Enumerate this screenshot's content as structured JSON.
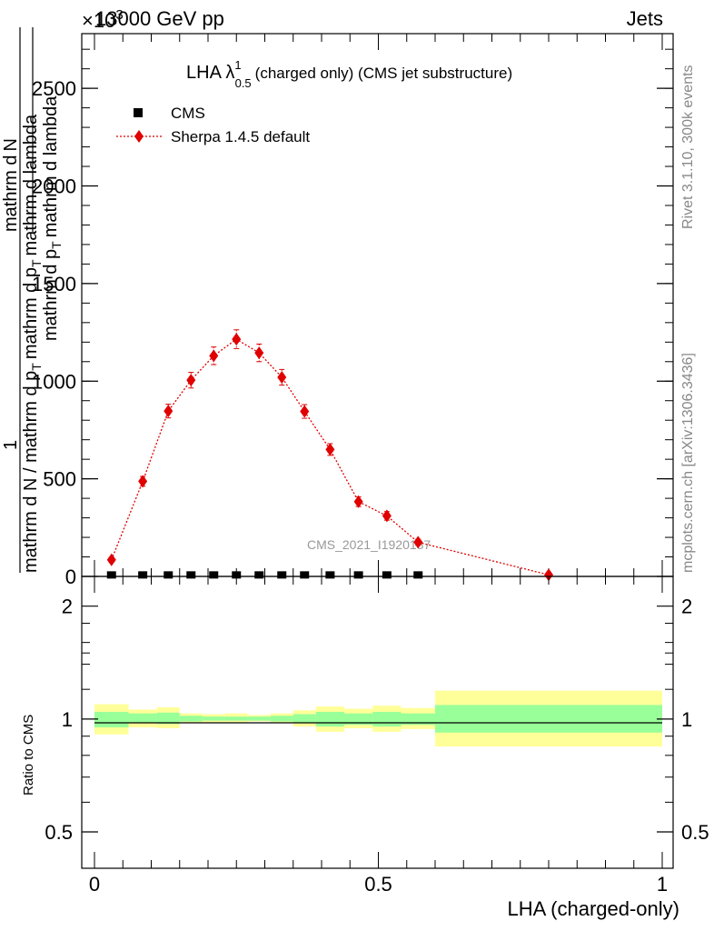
{
  "header": {
    "energy_label": "13000 GeV pp",
    "process_label": "Jets",
    "exponent_label": "×10",
    "exponent_power": "3",
    "side_label_version": "Rivet 3.1.10,  300k events",
    "side_label_site": "mcplots.cern.ch [arXiv:1306.3436]",
    "watermark": "CMS_2021_I1920187"
  },
  "main_plot": {
    "title_prefix": "LHA λ",
    "title_sup": "1",
    "title_sub": "0.5",
    "title_suffix": "(charged only) (CMS jet substructure)",
    "ylabel_top": "1",
    "ylabel_top_num": "mathrm d N / mathrm d p",
    "ylabel_top_num_sub": "T",
    "ylabel_top_den": "mathrm d p",
    "ylabel_top_den_sub": "T",
    "ylabel_frac_num": "mathrm d",
    "ylabel_frac_den": "mathrm d N / mathrm d p",
    "ylabel_combined_line1": "mathrm d",
    "ylabel_combined_line2": "N",
    "ylabel_combined_line3": "mathrm d p",
    "ylabel_combined_line3_sub": "T",
    "ylabel_combined_line4": "mathrm d lambda",
    "ylabel_row_a": "1",
    "ylabel_row_b": "mathrm d N / mathrm d p",
    "ylabel_row_b_sub": "T",
    "ylabel_row_c": "mathrm d",
    "ylabel_row_d": "mathrm d p",
    "ylabel_row_d_sub": "T",
    "ylabel_row_e": "mathrm d lambda",
    "ylabel_right_num": "mathrm d",
    "ylabel_right_num2": "N",
    "ylabel_right_den": "mathrm d p",
    "ylabel_right_den_sub": "T",
    "ylabel_right_den2": "mathrm d lambda",
    "ylabel_left_num": "1",
    "ylabel_left_den": "mathrm d N / mathrm d p",
    "ylabel_left_den_sub": "T",
    "ylabel_left_den2": "mathrm d p",
    "ylabel_left_den2_sub": "T",
    "ylabel_left_den3": "mathrm d lambda",
    "ylabel_primary_text": "mathrm d",
    "ylabel_secondary_text": "N",
    "ytick_labels": [
      "0",
      "500",
      "1000",
      "1500",
      "2000",
      "2500"
    ],
    "legend": [
      {
        "label": "CMS",
        "color": "#000000"
      },
      {
        "label": "Sherpa 1.4.5 default",
        "color": "#e00000"
      }
    ]
  },
  "ratio_plot": {
    "ylabel": "Ratio to CMS",
    "ytick_labels": [
      "0.5",
      "1",
      "2"
    ],
    "xtick_labels": [
      "0",
      "0.5",
      "1"
    ],
    "xlabel": "LHA (charged-only)"
  },
  "chart_data": [
    {
      "type": "scatter",
      "title": "LHA λ^1_0.5 (charged only) (CMS jet substructure)",
      "xlabel": "LHA (charged-only)",
      "ylabel": "1/(dN/dpT) d²N/(dpT dλ)",
      "y_multiplier": 1000,
      "xlim": [
        0,
        1
      ],
      "ylim": [
        0,
        2.78
      ],
      "yticks": [
        0,
        0.5,
        1.0,
        1.5,
        2.0,
        2.5
      ],
      "series": [
        {
          "name": "CMS",
          "x": [
            0.03,
            0.085,
            0.13,
            0.17,
            0.21,
            0.25,
            0.29,
            0.33,
            0.37,
            0.415,
            0.465,
            0.515,
            0.57
          ],
          "y": [
            0.003,
            0.003,
            0.003,
            0.003,
            0.003,
            0.003,
            0.003,
            0.003,
            0.003,
            0.003,
            0.003,
            0.003,
            0.003
          ]
        },
        {
          "name": "Sherpa 1.4.5 default",
          "x": [
            0.03,
            0.085,
            0.13,
            0.17,
            0.21,
            0.25,
            0.29,
            0.33,
            0.37,
            0.415,
            0.465,
            0.515,
            0.57,
            0.8
          ],
          "y": [
            0.085,
            0.487,
            0.847,
            1.005,
            1.13,
            1.215,
            1.145,
            1.02,
            0.845,
            0.65,
            0.383,
            0.31,
            0.175,
            0.008
          ],
          "yerr": [
            0.012,
            0.025,
            0.035,
            0.04,
            0.045,
            0.048,
            0.045,
            0.04,
            0.035,
            0.03,
            0.025,
            0.022,
            0.015,
            0.004
          ]
        }
      ]
    },
    {
      "type": "area",
      "title": "Ratio to CMS",
      "xlabel": "LHA (charged-only)",
      "ylabel": "Ratio to CMS",
      "xlim": [
        0,
        1
      ],
      "ylim": [
        0.4,
        2.4
      ],
      "yscale": "log",
      "yticks": [
        0.5,
        1,
        2
      ],
      "bins": [
        0,
        0.06,
        0.11,
        0.15,
        0.19,
        0.23,
        0.27,
        0.31,
        0.35,
        0.39,
        0.44,
        0.49,
        0.54,
        0.6,
        1.0
      ],
      "series": [
        {
          "name": "inner band (stat)",
          "lo": [
            0.95,
            0.975,
            0.97,
            0.985,
            0.99,
            0.99,
            0.99,
            0.985,
            0.975,
            0.955,
            0.965,
            0.955,
            0.965,
            0.92
          ],
          "hi": [
            1.045,
            1.035,
            1.04,
            1.02,
            1.015,
            1.015,
            1.015,
            1.02,
            1.03,
            1.045,
            1.035,
            1.045,
            1.035,
            1.09
          ]
        },
        {
          "name": "outer band (total)",
          "lo": [
            0.91,
            0.95,
            0.945,
            0.975,
            0.98,
            0.98,
            0.985,
            0.975,
            0.955,
            0.925,
            0.945,
            0.925,
            0.94,
            0.845
          ],
          "hi": [
            1.095,
            1.06,
            1.075,
            1.035,
            1.03,
            1.035,
            1.025,
            1.035,
            1.055,
            1.08,
            1.065,
            1.085,
            1.07,
            1.19
          ]
        },
        {
          "name": "Sherpa 1.4.5 default",
          "x": [
            0,
            1
          ],
          "y": [
            1,
            1
          ]
        }
      ]
    }
  ]
}
